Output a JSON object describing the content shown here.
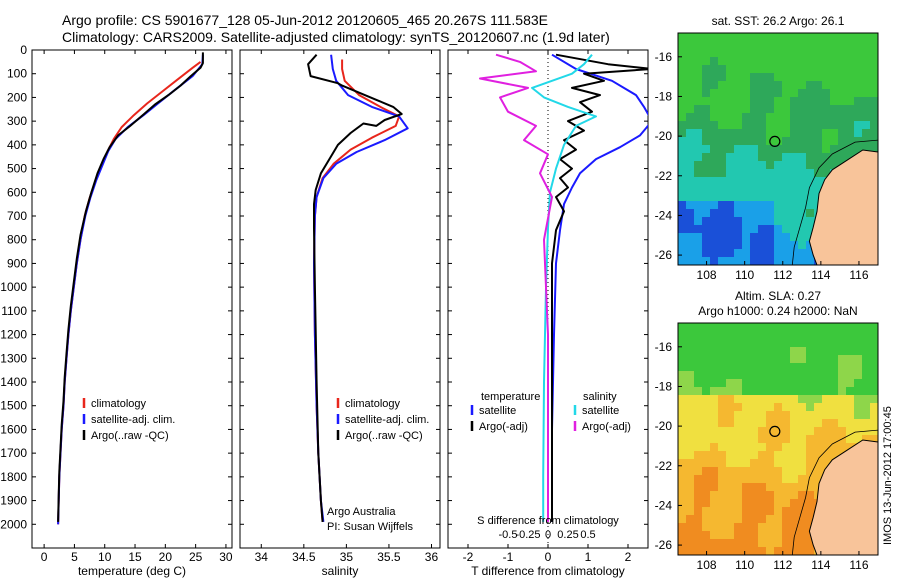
{
  "header": {
    "line1": "Argo profile: CS 5901677_128 05-Jun-2012 20120605_465 20.267S 111.583E",
    "line2": "Climatology: CARS2009. Satellite-adjusted climatology: synTS_20120607.nc (1.9d later)"
  },
  "side_stamp": "IMOS 13-Jun-2012 17:00:45",
  "colors": {
    "climatology": "#e8261c",
    "satellite": "#1a1aff",
    "argo": "#000000",
    "sal_satellite": "#22d8e8",
    "sal_argo": "#e020e0",
    "land": "#f8c49a"
  },
  "chart_data": [
    {
      "type": "line",
      "panel": "temperature",
      "xlabel": "temperature (deg C)",
      "ylabel": "",
      "xlim": [
        -2,
        31
      ],
      "ylim": [
        2100,
        0
      ],
      "xticks": [
        "0",
        "5",
        "10",
        "15",
        "20",
        "25",
        "30"
      ],
      "yticks": [
        "0",
        "100",
        "200",
        "300",
        "400",
        "500",
        "600",
        "700",
        "800",
        "900",
        "1000",
        "1100",
        "1200",
        "1300",
        "1400",
        "1500",
        "1600",
        "1700",
        "1800",
        "1900",
        "2000"
      ],
      "legend": [
        "climatology",
        "satellite-adj. clim.",
        "Argo(..raw -QC)"
      ],
      "series": [
        {
          "name": "climatology",
          "x": [
            25.8,
            24.5,
            22,
            19.5,
            17,
            14.8,
            12.8,
            11.5,
            10.5,
            9.7,
            8.5,
            7.5,
            6.7,
            6,
            5.4,
            4.9,
            4.4,
            4,
            3.7,
            3.4,
            3.2,
            2.9,
            2.7,
            2.5,
            2.4,
            2.3
          ],
          "y": [
            50,
            75,
            125,
            175,
            225,
            275,
            325,
            375,
            425,
            475,
            550,
            625,
            700,
            800,
            900,
            1000,
            1100,
            1200,
            1300,
            1400,
            1500,
            1600,
            1700,
            1800,
            1900,
            2000
          ]
        },
        {
          "name": "satellite-adj. clim.",
          "x": [
            26.2,
            26.1,
            24.5,
            21.5,
            18.8,
            16.4,
            13.8,
            11.8,
            10.6,
            9.8,
            8.6,
            7.6,
            6.8,
            6,
            5.4,
            4.9,
            4.4,
            4,
            3.7,
            3.4,
            3.2,
            2.9,
            2.7,
            2.5,
            2.4,
            2.3
          ],
          "y": [
            20,
            60,
            110,
            170,
            225,
            275,
            325,
            375,
            425,
            475,
            550,
            625,
            700,
            800,
            900,
            1000,
            1100,
            1200,
            1300,
            1400,
            1500,
            1600,
            1700,
            1800,
            1900,
            2000
          ]
        },
        {
          "name": "Argo(..raw -QC)",
          "x": [
            26.2,
            26.2,
            25.8,
            24.2,
            22.5,
            20.5,
            18.3,
            16.5,
            14.2,
            12.2,
            10.8,
            9.8,
            8.8,
            7.8,
            6.9,
            6,
            5.4,
            4.9,
            4.4,
            4,
            3.7,
            3.4,
            3.2,
            2.9,
            2.7,
            2.5,
            2.4,
            2.3
          ],
          "y": [
            10,
            55,
            75,
            110,
            150,
            190,
            230,
            270,
            320,
            360,
            410,
            460,
            520,
            600,
            680,
            780,
            880,
            980,
            1080,
            1180,
            1280,
            1380,
            1480,
            1580,
            1680,
            1780,
            1880,
            1990
          ]
        }
      ]
    },
    {
      "type": "line",
      "panel": "salinity",
      "xlabel": "salinity",
      "ylabel": "",
      "xlim": [
        33.75,
        36.1
      ],
      "ylim": [
        2100,
        0
      ],
      "xticks": [
        "34",
        "34.5",
        "35",
        "35.5",
        "36"
      ],
      "legend": [
        "climatology",
        "satellite-adj. clim.",
        "Argo(..raw -QC)"
      ],
      "annotation": [
        "Argo Australia",
        "PI: Susan Wijffels"
      ],
      "series": [
        {
          "name": "climatology",
          "x": [
            34.95,
            34.95,
            34.98,
            35.15,
            35.4,
            35.62,
            35.58,
            35.3,
            35.05,
            34.85,
            34.72,
            34.65,
            34.63,
            34.62,
            34.63,
            34.65,
            34.67,
            34.7,
            34.72
          ],
          "y": [
            40,
            80,
            130,
            190,
            240,
            280,
            320,
            370,
            420,
            480,
            540,
            620,
            700,
            900,
            1200,
            1500,
            1700,
            1900,
            1990
          ]
        },
        {
          "name": "satellite-adj. clim.",
          "x": [
            34.82,
            34.84,
            34.88,
            35.02,
            35.3,
            35.62,
            35.72,
            35.45,
            35.12,
            34.88,
            34.73,
            34.65,
            34.63,
            34.62,
            34.63,
            34.65,
            34.67,
            34.7,
            34.73
          ],
          "y": [
            20,
            80,
            130,
            190,
            240,
            280,
            330,
            380,
            430,
            480,
            540,
            620,
            700,
            900,
            1200,
            1500,
            1700,
            1900,
            1990
          ]
        },
        {
          "name": "Argo(..raw -QC)",
          "x": [
            34.65,
            34.55,
            34.58,
            34.9,
            34.95,
            35.35,
            35.55,
            35.65,
            35.45,
            35.35,
            35.2,
            35.05,
            34.9,
            34.8,
            34.7,
            34.64,
            34.62,
            34.62,
            34.63,
            34.65,
            34.67,
            34.7,
            34.72
          ],
          "y": [
            20,
            60,
            110,
            140,
            150,
            210,
            240,
            270,
            295,
            320,
            310,
            350,
            400,
            460,
            520,
            590,
            650,
            750,
            1000,
            1400,
            1700,
            1900,
            1990
          ]
        }
      ]
    },
    {
      "type": "line",
      "panel": "difference",
      "xlabel": "T difference from climatology",
      "xlabel2": "S difference from climatology",
      "xlim": [
        -2.5,
        2.5
      ],
      "ylim": [
        2100,
        0
      ],
      "xticks": [
        "-2",
        "-1",
        "0",
        "1",
        "2"
      ],
      "xticks2": [
        "-0.5",
        "-0.25",
        "0",
        "0.25",
        "0.5"
      ],
      "legend_headers": [
        "temperature",
        "salinity"
      ],
      "legend": [
        "satellite",
        "Argo(-adj)",
        "satellite",
        "Argo(-adj)"
      ],
      "series": [
        {
          "name": "temperature satellite",
          "x": [
            0.1,
            0.7,
            1.6,
            2.2,
            2.4,
            2.6,
            2.3,
            1.8,
            1.2,
            0.8,
            0.6,
            0.4,
            0.3,
            0.2,
            0.15,
            0.1,
            0.1
          ],
          "y": [
            20,
            80,
            130,
            190,
            240,
            300,
            360,
            410,
            460,
            520,
            580,
            650,
            760,
            900,
            1200,
            1600,
            1990
          ]
        },
        {
          "name": "temperature Argo(-adj)",
          "x": [
            0.2,
            1.5,
            2.6,
            0.9,
            1.4,
            0.6,
            1.3,
            0.8,
            1.1,
            0.5,
            0.9,
            0.4,
            0.7,
            0.3,
            0.6,
            0.3,
            0.5,
            0.2,
            0.4,
            0.2,
            0.1,
            0.1,
            0.1
          ],
          "y": [
            20,
            60,
            80,
            100,
            130,
            160,
            190,
            220,
            260,
            300,
            340,
            380,
            420,
            460,
            500,
            540,
            580,
            620,
            680,
            760,
            900,
            1400,
            1990
          ]
        },
        {
          "name": "salinity satellite",
          "x": [
            1.1,
            0.9,
            0.6,
            -0.4,
            -0.1,
            0.5,
            1.2,
            0.7,
            0.4,
            0.2,
            0.05,
            0,
            -0.05,
            -0.1,
            -0.12,
            -0.12
          ],
          "y": [
            20,
            60,
            100,
            160,
            200,
            240,
            280,
            320,
            400,
            500,
            600,
            750,
            1000,
            1400,
            1800,
            1990
          ]
        },
        {
          "name": "salinity Argo(-adj)",
          "x": [
            -1.3,
            -0.7,
            -0.3,
            -1.7,
            -0.5,
            -1.2,
            -1.0,
            -0.3,
            -0.6,
            0,
            -0.2,
            0.1,
            -0.1,
            0,
            0
          ],
          "y": [
            20,
            50,
            90,
            120,
            160,
            200,
            260,
            320,
            380,
            440,
            520,
            620,
            800,
            1200,
            1990
          ]
        }
      ]
    },
    {
      "type": "heatmap",
      "panel": "sst-map",
      "title": "sat. SST: 26.2 Argo: 26.1",
      "xticks": [
        "108",
        "110",
        "112",
        "114",
        "116"
      ],
      "yticks": [
        "-16",
        "-18",
        "-20",
        "-22",
        "-24",
        "-26"
      ],
      "xlim": [
        106.5,
        117
      ],
      "ylim": [
        -26.5,
        -14.8
      ],
      "marker": {
        "lon": 111.583,
        "lat": -20.267
      }
    },
    {
      "type": "heatmap",
      "panel": "sla-map",
      "title_lines": [
        "Altim. SLA: 0.27",
        "Argo h1000: 0.24 h2000: NaN"
      ],
      "xticks": [
        "108",
        "110",
        "112",
        "114",
        "116"
      ],
      "yticks": [
        "-16",
        "-18",
        "-20",
        "-22",
        "-24",
        "-26"
      ],
      "xlim": [
        106.5,
        117
      ],
      "ylim": [
        -26.5,
        -14.8
      ],
      "marker": {
        "lon": 111.583,
        "lat": -20.267
      }
    }
  ]
}
